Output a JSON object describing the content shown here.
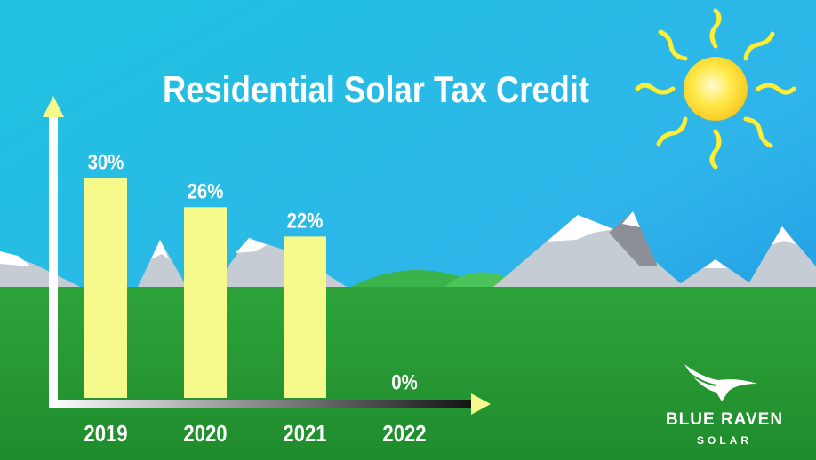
{
  "chart_data": {
    "type": "bar",
    "title": "Residential Solar Tax Credit",
    "categories": [
      "2019",
      "2020",
      "2021",
      "2022"
    ],
    "values": [
      30,
      26,
      22,
      0
    ],
    "value_labels": [
      "30%",
      "26%",
      "22%",
      "0%"
    ],
    "color": "#f6f98c",
    "ylim": [
      0,
      35
    ]
  },
  "logo": {
    "name": "BLUE RAVEN",
    "tagline": "SOLAR"
  }
}
